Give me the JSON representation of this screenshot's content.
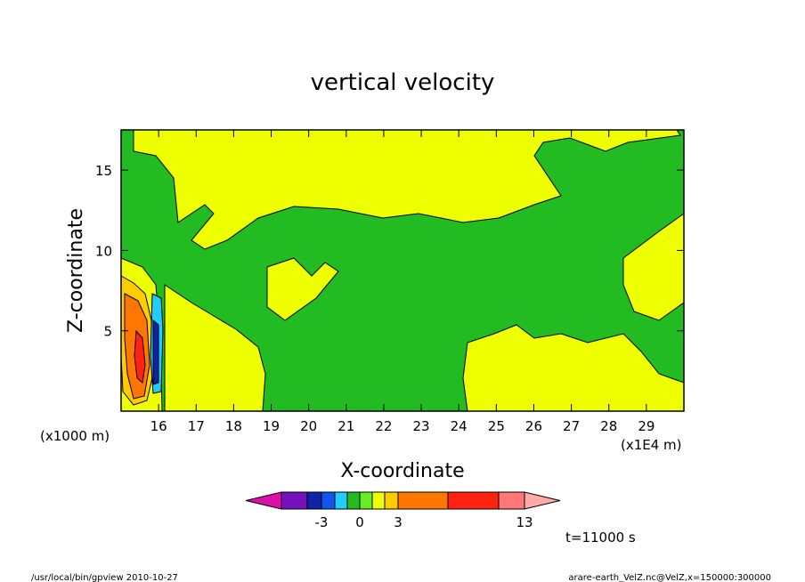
{
  "chart_data": {
    "type": "heatmap",
    "title": "vertical velocity",
    "xlabel": "X-coordinate",
    "ylabel": "Z-coordinate",
    "x_unit_label": "(x1E4 m)",
    "y_unit_label": "(x1000 m)",
    "xlim": [
      15.0,
      30.0
    ],
    "ylim": [
      0,
      17.5
    ],
    "x_ticks": [
      "16",
      "17",
      "18",
      "19",
      "20",
      "21",
      "22",
      "23",
      "24",
      "25",
      "26",
      "27",
      "28",
      "29"
    ],
    "y_ticks": [
      "5",
      "10",
      "15"
    ],
    "colorbar": {
      "levels": [
        -5,
        -4,
        -3,
        -2,
        -1,
        0,
        1,
        2,
        3,
        7,
        11,
        13
      ],
      "tick_labels": [
        "-3",
        "0",
        "3",
        "13"
      ],
      "colors": [
        "#dd11aa",
        "#7711bb",
        "#1122aa",
        "#1155ee",
        "#22ccff",
        "#22bb22",
        "#66ee22",
        "#eeff00",
        "#ffcc00",
        "#ff7700",
        "#ff2211",
        "#ff7777",
        "#ffaaaa"
      ]
    },
    "time_label": "t=11000 s"
  },
  "footer": {
    "left": "/usr/local/bin/gpview   2010-10-27",
    "right": "arare-earth_VelZ.nc@VelZ,x=150000:300000"
  }
}
